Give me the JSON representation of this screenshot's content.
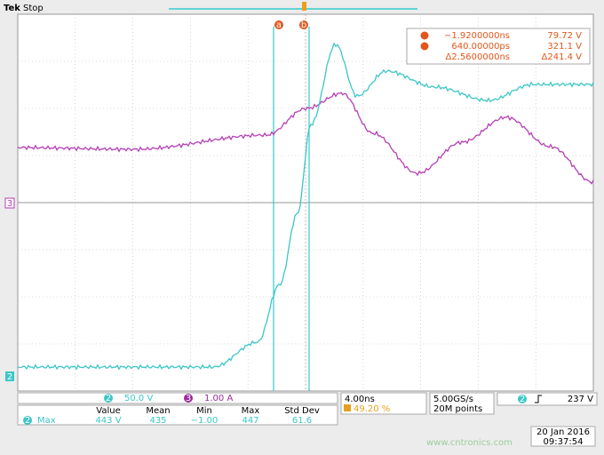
{
  "header": {
    "brand": "Tek",
    "state": "Stop"
  },
  "cursors": {
    "a": "a",
    "b": "b"
  },
  "readout": {
    "a_time": "−1.9200000ns",
    "a_value": "79.72 V",
    "b_time": "640.00000ps",
    "b_value": "321.1 V",
    "delta_time": "Δ2.5600000ns",
    "delta_value": "Δ241.4 V"
  },
  "channel_markers": {
    "ch3": "3",
    "ch2": "2"
  },
  "status": {
    "ch2_label": "2",
    "ch2_scale": "50.0 V",
    "ch3_label": "3",
    "ch3_scale": "1.00 A",
    "timebase": "4.00ns",
    "trigger_position": "49.20 %",
    "sample_rate": "5.00GS/s",
    "record_length": "20M points",
    "trigger_channel": "2",
    "trigger_level": "237 V"
  },
  "measurements": {
    "headers": [
      "Value",
      "Mean",
      "Min",
      "Max",
      "Std Dev"
    ],
    "rows": [
      {
        "channel": "2",
        "name": "Max",
        "cells": [
          "443 V",
          "435",
          "−1.00",
          "447",
          "61.6"
        ]
      }
    ]
  },
  "timestamp": {
    "date": "20 Jan 2016",
    "time": "09:37:54"
  },
  "watermark": "www.cntronics.com"
}
